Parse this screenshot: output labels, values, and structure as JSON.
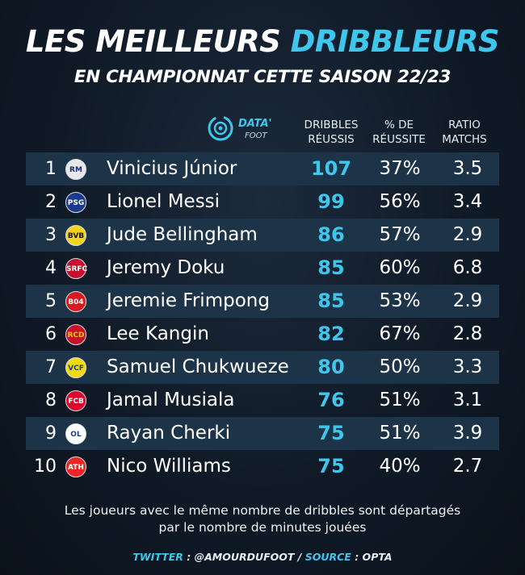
{
  "header": {
    "title_part1": "LES MEILLEURS ",
    "title_accent": "DRIBBLEURS",
    "subtitle": "EN CHAMPIONNAT CETTE SAISON 22/23"
  },
  "logo": {
    "name": "DATA'",
    "sub": "FOOT"
  },
  "columns": {
    "dribbles_l1": "DRIBBLES",
    "dribbles_l2": "RÉUSSIS",
    "pct_l1": "% DE",
    "pct_l2": "RÉUSSITE",
    "ratio_l1": "RATIO",
    "ratio_l2": "MATCHS"
  },
  "players": [
    {
      "rank": "1",
      "club_icon": "real-madrid-crest",
      "badge": "RM",
      "badge_color": "#e8e8e8",
      "badge_text": "#1a2a6c",
      "name": "Vinicius Júnior",
      "dribbles": "107",
      "pct": "37%",
      "ratio": "3.5"
    },
    {
      "rank": "2",
      "club_icon": "psg-crest",
      "badge": "PSG",
      "badge_color": "#1c3b8a",
      "badge_text": "#ffffff",
      "name": "Lionel Messi",
      "dribbles": "99",
      "pct": "56%",
      "ratio": "3.4"
    },
    {
      "rank": "3",
      "club_icon": "bvb-crest",
      "badge": "BVB",
      "badge_color": "#f4d31c",
      "badge_text": "#111111",
      "name": "Jude Bellingham",
      "dribbles": "86",
      "pct": "57%",
      "ratio": "2.9"
    },
    {
      "rank": "4",
      "club_icon": "rennes-crest",
      "badge": "SRFC",
      "badge_color": "#c8102e",
      "badge_text": "#ffffff",
      "name": "Jeremy Doku",
      "dribbles": "85",
      "pct": "60%",
      "ratio": "6.8"
    },
    {
      "rank": "5",
      "club_icon": "leverkusen-crest",
      "badge": "B04",
      "badge_color": "#d71920",
      "badge_text": "#ffffff",
      "name": "Jeremie Frimpong",
      "dribbles": "85",
      "pct": "53%",
      "ratio": "2.9"
    },
    {
      "rank": "6",
      "club_icon": "mallorca-crest",
      "badge": "RCD",
      "badge_color": "#c8102e",
      "badge_text": "#f5c400",
      "name": "Lee Kangin",
      "dribbles": "82",
      "pct": "67%",
      "ratio": "2.8"
    },
    {
      "rank": "7",
      "club_icon": "villarreal-crest",
      "badge": "VCF",
      "badge_color": "#f5d90a",
      "badge_text": "#1a3c8a",
      "name": "Samuel Chukwueze",
      "dribbles": "80",
      "pct": "50%",
      "ratio": "3.3"
    },
    {
      "rank": "8",
      "club_icon": "bayern-crest",
      "badge": "FCB",
      "badge_color": "#dc052d",
      "badge_text": "#ffffff",
      "name": "Jamal Musiala",
      "dribbles": "76",
      "pct": "51%",
      "ratio": "3.1"
    },
    {
      "rank": "9",
      "club_icon": "lyon-crest",
      "badge": "OL",
      "badge_color": "#ffffff",
      "badge_text": "#1a3c8a",
      "name": "Rayan Cherki",
      "dribbles": "75",
      "pct": "51%",
      "ratio": "3.9"
    },
    {
      "rank": "10",
      "club_icon": "athletic-bilbao-crest",
      "badge": "ATH",
      "badge_color": "#ee2523",
      "badge_text": "#ffffff",
      "name": "Nico Williams",
      "dribbles": "75",
      "pct": "40%",
      "ratio": "2.7"
    }
  ],
  "note": {
    "line1": "Les joueurs avec le même nombre de dribbles sont départagés",
    "line2": "par le nombre de minutes jouées"
  },
  "footer": {
    "twitter_label": "TWITTER",
    "twitter_rest": " : @AMOURDUFOOT / ",
    "source_label": "SOURCE",
    "source_rest": " : OPTA"
  },
  "colors": {
    "accent": "#3ec6ec",
    "row_shade": "#1d3448"
  }
}
